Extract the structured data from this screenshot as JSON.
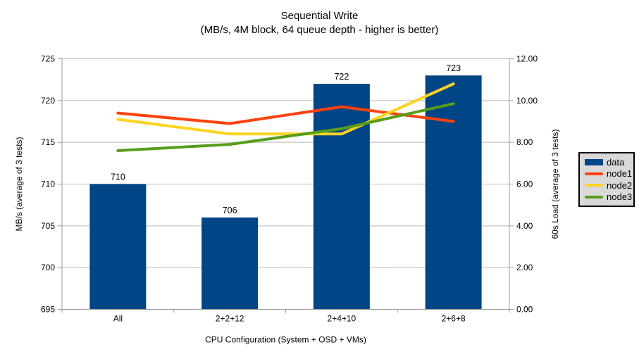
{
  "title": {
    "line1": "Sequential Write",
    "line2": "(MB/s, 4M block, 64 queue depth - higher is better)"
  },
  "chart_data": {
    "type": "bar+line combo",
    "categories": [
      "All",
      "2+2+12",
      "2+4+10",
      "2+6+8"
    ],
    "series": [
      {
        "name": "data",
        "kind": "bar",
        "axis": "left",
        "color": "#004586",
        "values": [
          710,
          706,
          722,
          723
        ],
        "labels": [
          "710",
          "706",
          "722",
          "723"
        ]
      },
      {
        "name": "node1",
        "kind": "line",
        "axis": "right",
        "color": "#FF420E",
        "values": [
          9.4,
          8.9,
          9.7,
          9.0
        ]
      },
      {
        "name": "node2",
        "kind": "line",
        "axis": "right",
        "color": "#FFD320",
        "values": [
          9.1,
          8.4,
          8.4,
          10.8
        ]
      },
      {
        "name": "node3",
        "kind": "line",
        "axis": "right",
        "color": "#579D1C",
        "values": [
          7.6,
          7.9,
          8.65,
          9.85
        ]
      }
    ],
    "left_axis": {
      "title": "MB/s (average of 3 tests)",
      "min": 695,
      "max": 725,
      "tick_labels": [
        "695",
        "700",
        "705",
        "710",
        "715",
        "720",
        "725"
      ]
    },
    "right_axis": {
      "title": "60s Load (average of 3 tests)",
      "min": 0,
      "max": 12,
      "tick_labels": [
        "0.00",
        "2.00",
        "4.00",
        "6.00",
        "8.00",
        "10.00",
        "12.00"
      ]
    },
    "x_axis": {
      "title": "CPU Configuration (System + OSD + VMs)"
    },
    "legend": {
      "items": [
        "data",
        "node1",
        "node2",
        "node3"
      ],
      "position": "right",
      "background": "#d9d9d9"
    },
    "grid": "horizontal major only",
    "style": {
      "grid_color": "#b9b9b9",
      "axis_color": "#9b9b9b",
      "text_color": "#000000",
      "background": "#ffffff"
    }
  }
}
